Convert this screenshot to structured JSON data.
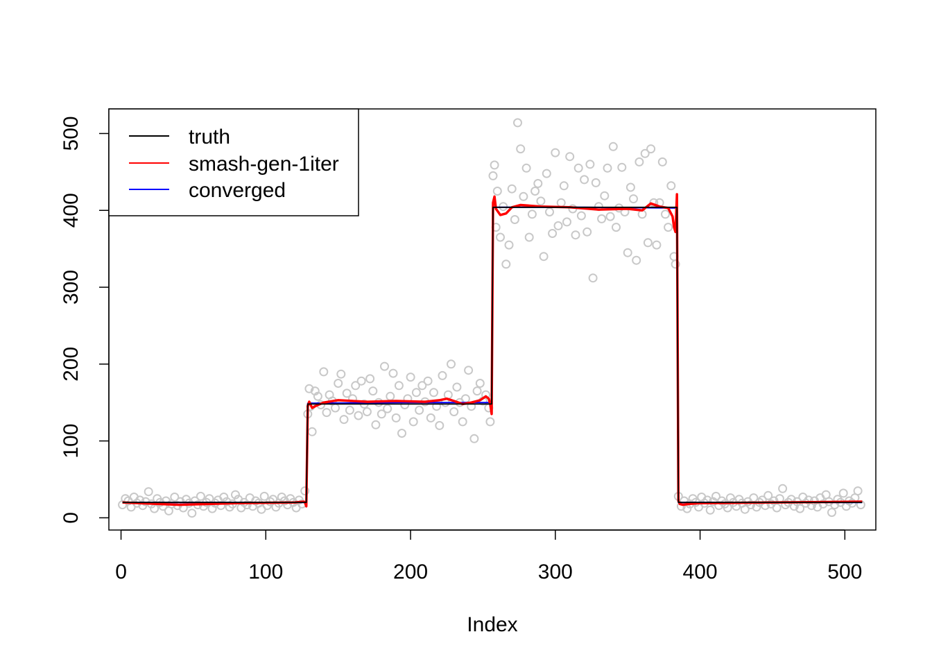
{
  "chart_data": {
    "type": "line",
    "title": "",
    "xlabel": "Index",
    "ylabel": "",
    "xlim": [
      -8.4,
      521.4
    ],
    "ylim": [
      -15.9,
      532
    ],
    "xticks": [
      0,
      100,
      200,
      300,
      400,
      500
    ],
    "yticks": [
      0,
      100,
      200,
      300,
      400,
      500
    ],
    "xtick_labels": [
      "0",
      "100",
      "200",
      "300",
      "400",
      "500"
    ],
    "ytick_labels": [
      "0",
      "100",
      "200",
      "300",
      "400",
      "500"
    ],
    "grid": false,
    "legend_position": "top-left",
    "colors": {
      "truth": "#000000",
      "smash": "#ff0000",
      "converged": "#0000ff",
      "points": "#c8c8c8"
    },
    "series": [
      {
        "name": "truth",
        "style": "step",
        "x": [
          1,
          128,
          129,
          256,
          257,
          384,
          385,
          512
        ],
        "y": [
          20,
          20,
          148,
          148,
          404,
          404,
          20,
          20
        ]
      },
      {
        "name": "smash-gen-1iter",
        "style": "line",
        "x": [
          1,
          40,
          80,
          120,
          126,
          127,
          128,
          129,
          130,
          132,
          135,
          140,
          150,
          170,
          190,
          210,
          220,
          225,
          230,
          236,
          242,
          248,
          252,
          254,
          255,
          256,
          257,
          258,
          259,
          262,
          266,
          270,
          276,
          290,
          310,
          330,
          350,
          355,
          360,
          366,
          372,
          378,
          381,
          382,
          383,
          384,
          385,
          386,
          388,
          392,
          400,
          450,
          512
        ],
        "y": [
          20,
          17,
          19,
          20,
          21,
          20,
          15,
          145,
          151,
          143,
          146,
          150,
          153,
          151,
          152,
          151,
          153,
          155,
          152,
          148,
          150,
          153,
          158,
          155,
          148,
          135,
          410,
          418,
          402,
          394,
          396,
          404,
          407,
          405,
          404,
          401,
          402,
          401,
          400,
          409,
          405,
          403,
          392,
          378,
          372,
          421,
          22,
          18,
          17,
          18,
          19,
          20,
          21
        ]
      },
      {
        "name": "converged",
        "style": "line",
        "x": [
          1,
          64,
          128,
          129,
          192,
          256,
          257,
          320,
          384,
          385,
          448,
          512
        ],
        "y": [
          20,
          20,
          20,
          149,
          150,
          150,
          404,
          404,
          403,
          20,
          20,
          20
        ]
      }
    ],
    "scatter": {
      "name": "observations",
      "x": [
        1,
        3,
        5,
        7,
        9,
        11,
        13,
        15,
        17,
        19,
        21,
        23,
        25,
        27,
        29,
        31,
        33,
        35,
        37,
        39,
        41,
        43,
        45,
        47,
        49,
        51,
        53,
        55,
        57,
        59,
        61,
        63,
        65,
        67,
        69,
        71,
        73,
        75,
        77,
        79,
        81,
        83,
        85,
        87,
        89,
        91,
        93,
        95,
        97,
        99,
        101,
        103,
        105,
        107,
        109,
        111,
        113,
        115,
        117,
        119,
        121,
        123,
        125,
        127,
        129,
        130,
        131,
        132,
        134,
        136,
        138,
        140,
        142,
        144,
        146,
        148,
        150,
        152,
        154,
        156,
        158,
        160,
        162,
        164,
        166,
        168,
        170,
        172,
        174,
        176,
        178,
        180,
        182,
        184,
        186,
        188,
        190,
        192,
        194,
        196,
        198,
        200,
        202,
        204,
        206,
        208,
        210,
        212,
        214,
        216,
        218,
        220,
        222,
        224,
        226,
        228,
        230,
        232,
        234,
        236,
        238,
        240,
        242,
        244,
        246,
        248,
        250,
        252,
        254,
        255,
        257,
        258,
        259,
        260,
        262,
        264,
        266,
        268,
        270,
        272,
        274,
        276,
        278,
        280,
        282,
        284,
        286,
        288,
        290,
        292,
        294,
        296,
        298,
        300,
        302,
        304,
        306,
        308,
        310,
        312,
        314,
        316,
        318,
        320,
        322,
        324,
        326,
        328,
        330,
        332,
        334,
        336,
        338,
        340,
        342,
        344,
        346,
        348,
        350,
        352,
        354,
        356,
        358,
        360,
        362,
        364,
        366,
        368,
        370,
        372,
        374,
        376,
        378,
        380,
        382,
        383,
        385,
        387,
        389,
        391,
        393,
        395,
        397,
        399,
        401,
        403,
        405,
        407,
        409,
        411,
        413,
        415,
        417,
        419,
        421,
        423,
        425,
        427,
        429,
        431,
        433,
        435,
        437,
        439,
        441,
        443,
        445,
        447,
        449,
        451,
        453,
        455,
        457,
        459,
        461,
        463,
        465,
        467,
        469,
        471,
        473,
        475,
        477,
        479,
        481,
        483,
        485,
        487,
        489,
        491,
        493,
        495,
        497,
        499,
        501,
        503,
        505,
        507,
        509,
        511
      ],
      "y": [
        17,
        25,
        22,
        14,
        27,
        19,
        23,
        16,
        21,
        34,
        18,
        12,
        25,
        20,
        15,
        22,
        9,
        18,
        27,
        16,
        21,
        13,
        24,
        19,
        6,
        22,
        17,
        28,
        15,
        20,
        25,
        12,
        19,
        23,
        16,
        27,
        21,
        14,
        18,
        30,
        24,
        13,
        20,
        17,
        26,
        15,
        22,
        19,
        11,
        28,
        16,
        21,
        24,
        14,
        19,
        27,
        22,
        17,
        25,
        20,
        13,
        23,
        18,
        35,
        135,
        168,
        145,
        112,
        165,
        158,
        147,
        190,
        137,
        160,
        152,
        143,
        175,
        187,
        128,
        162,
        140,
        155,
        172,
        133,
        178,
        148,
        138,
        181,
        165,
        121,
        150,
        135,
        197,
        142,
        158,
        188,
        130,
        172,
        110,
        147,
        155,
        183,
        125,
        163,
        140,
        172,
        151,
        178,
        130,
        163,
        145,
        120,
        185,
        150,
        160,
        200,
        138,
        170,
        150,
        125,
        155,
        192,
        145,
        103,
        165,
        175,
        152,
        160,
        143,
        125,
        445,
        459,
        378,
        425,
        365,
        405,
        330,
        355,
        428,
        388,
        514,
        480,
        418,
        455,
        365,
        395,
        425,
        435,
        412,
        340,
        448,
        398,
        370,
        475,
        380,
        410,
        432,
        385,
        470,
        402,
        368,
        455,
        393,
        440,
        372,
        460,
        312,
        436,
        405,
        389,
        419,
        455,
        392,
        483,
        378,
        403,
        456,
        398,
        345,
        430,
        415,
        335,
        463,
        395,
        474,
        358,
        480,
        410,
        355,
        410,
        463,
        395,
        378,
        432,
        340,
        330,
        28,
        15,
        22,
        12,
        18,
        25,
        20,
        14,
        27,
        19,
        23,
        10,
        21,
        28,
        16,
        22,
        18,
        13,
        26,
        20,
        15,
        24,
        19,
        11,
        21,
        17,
        26,
        14,
        20,
        23,
        16,
        29,
        18,
        22,
        13,
        25,
        38,
        17,
        20,
        24,
        15,
        21,
        12,
        27,
        19,
        23,
        16,
        22,
        14,
        26,
        18,
        30,
        21,
        7,
        17,
        24,
        20,
        32,
        15,
        22,
        19,
        26,
        35,
        17
      ]
    },
    "legend": [
      {
        "label": "truth",
        "color": "#000000"
      },
      {
        "label": "smash-gen-1iter",
        "color": "#ff0000"
      },
      {
        "label": "converged",
        "color": "#0000ff"
      }
    ]
  }
}
